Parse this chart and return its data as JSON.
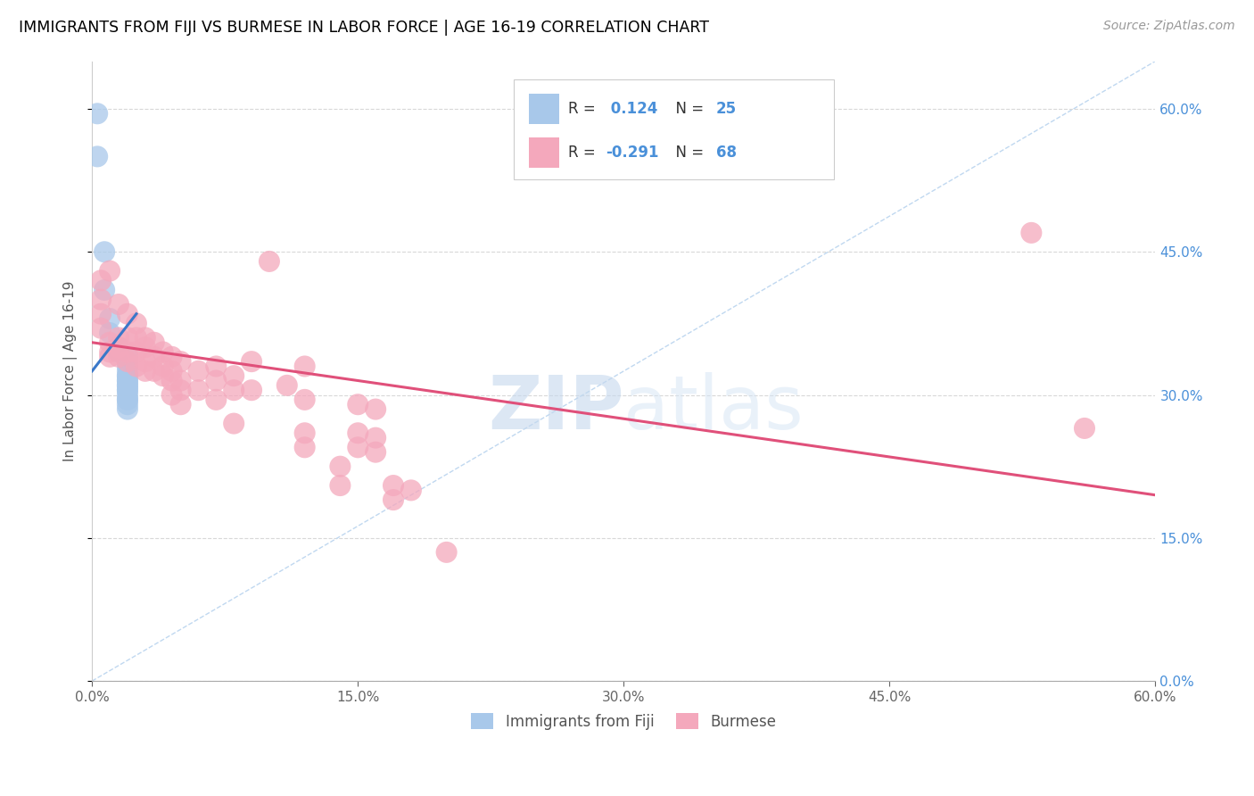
{
  "title": "IMMIGRANTS FROM FIJI VS BURMESE IN LABOR FORCE | AGE 16-19 CORRELATION CHART",
  "source": "Source: ZipAtlas.com",
  "ylabel": "In Labor Force | Age 16-19",
  "watermark": "ZIPatlas",
  "xlim": [
    0.0,
    0.6
  ],
  "ylim": [
    0.0,
    0.65
  ],
  "fiji_color": "#a8c8ea",
  "burmese_color": "#f4a8bc",
  "fiji_line_color": "#3a78c9",
  "burmese_line_color": "#e0507a",
  "diagonal_color": "#c0d8f0",
  "fiji_R": 0.124,
  "fiji_N": 25,
  "burmese_R": -0.291,
  "burmese_N": 68,
  "fiji_points": [
    [
      0.003,
      0.595
    ],
    [
      0.003,
      0.55
    ],
    [
      0.007,
      0.45
    ],
    [
      0.007,
      0.41
    ],
    [
      0.01,
      0.38
    ],
    [
      0.01,
      0.365
    ],
    [
      0.015,
      0.35
    ],
    [
      0.015,
      0.345
    ],
    [
      0.02,
      0.34
    ],
    [
      0.02,
      0.335
    ],
    [
      0.02,
      0.33
    ],
    [
      0.02,
      0.325
    ],
    [
      0.02,
      0.32
    ],
    [
      0.02,
      0.315
    ],
    [
      0.02,
      0.31
    ],
    [
      0.02,
      0.305
    ],
    [
      0.02,
      0.3
    ],
    [
      0.02,
      0.295
    ],
    [
      0.02,
      0.29
    ],
    [
      0.02,
      0.32
    ],
    [
      0.02,
      0.315
    ],
    [
      0.02,
      0.31
    ],
    [
      0.02,
      0.305
    ],
    [
      0.02,
      0.295
    ],
    [
      0.02,
      0.285
    ]
  ],
  "burmese_points": [
    [
      0.005,
      0.42
    ],
    [
      0.005,
      0.4
    ],
    [
      0.005,
      0.385
    ],
    [
      0.005,
      0.37
    ],
    [
      0.01,
      0.43
    ],
    [
      0.01,
      0.355
    ],
    [
      0.01,
      0.345
    ],
    [
      0.01,
      0.34
    ],
    [
      0.015,
      0.395
    ],
    [
      0.015,
      0.36
    ],
    [
      0.015,
      0.35
    ],
    [
      0.015,
      0.34
    ],
    [
      0.02,
      0.385
    ],
    [
      0.02,
      0.36
    ],
    [
      0.02,
      0.345
    ],
    [
      0.02,
      0.335
    ],
    [
      0.025,
      0.375
    ],
    [
      0.025,
      0.36
    ],
    [
      0.025,
      0.345
    ],
    [
      0.025,
      0.33
    ],
    [
      0.03,
      0.36
    ],
    [
      0.03,
      0.35
    ],
    [
      0.03,
      0.335
    ],
    [
      0.03,
      0.325
    ],
    [
      0.035,
      0.355
    ],
    [
      0.035,
      0.34
    ],
    [
      0.035,
      0.325
    ],
    [
      0.04,
      0.345
    ],
    [
      0.04,
      0.33
    ],
    [
      0.04,
      0.32
    ],
    [
      0.045,
      0.34
    ],
    [
      0.045,
      0.325
    ],
    [
      0.045,
      0.315
    ],
    [
      0.045,
      0.3
    ],
    [
      0.05,
      0.335
    ],
    [
      0.05,
      0.315
    ],
    [
      0.05,
      0.305
    ],
    [
      0.05,
      0.29
    ],
    [
      0.06,
      0.325
    ],
    [
      0.06,
      0.305
    ],
    [
      0.07,
      0.33
    ],
    [
      0.07,
      0.315
    ],
    [
      0.07,
      0.295
    ],
    [
      0.08,
      0.32
    ],
    [
      0.08,
      0.305
    ],
    [
      0.08,
      0.27
    ],
    [
      0.09,
      0.335
    ],
    [
      0.09,
      0.305
    ],
    [
      0.1,
      0.44
    ],
    [
      0.11,
      0.31
    ],
    [
      0.12,
      0.33
    ],
    [
      0.12,
      0.295
    ],
    [
      0.12,
      0.26
    ],
    [
      0.12,
      0.245
    ],
    [
      0.14,
      0.225
    ],
    [
      0.14,
      0.205
    ],
    [
      0.15,
      0.29
    ],
    [
      0.15,
      0.26
    ],
    [
      0.15,
      0.245
    ],
    [
      0.16,
      0.285
    ],
    [
      0.16,
      0.255
    ],
    [
      0.16,
      0.24
    ],
    [
      0.17,
      0.205
    ],
    [
      0.17,
      0.19
    ],
    [
      0.18,
      0.2
    ],
    [
      0.2,
      0.135
    ],
    [
      0.53,
      0.47
    ],
    [
      0.56,
      0.265
    ]
  ]
}
